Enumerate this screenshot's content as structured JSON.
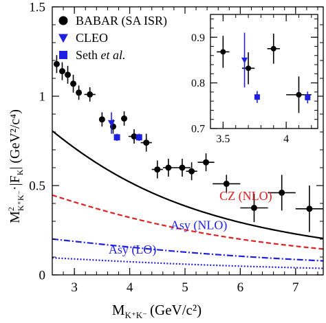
{
  "chart_data": [
    {
      "type": "scatter",
      "xlabel": "M",
      "xlabel_sub": "K⁺K⁻",
      "xlabel_unit": "(GeV/c²)",
      "ylabel": "M²K⁺K⁻·|FK| (GeV²/c⁴)",
      "ylabel_parts": {
        "m": "M",
        "sup": "2",
        "sub": "K⁺K⁻",
        "mid": "·|F",
        "sub2": "K",
        "tail": "| (GeV²/c⁴)"
      },
      "xlim": [
        2.6,
        7.5
      ],
      "ylim": [
        0,
        1.5
      ],
      "xticks": [
        3,
        4,
        5,
        6,
        7
      ],
      "yticks": [
        0,
        0.5,
        1,
        1.5
      ],
      "ytick_labels": [
        "0",
        "0.5",
        "1",
        "1.5"
      ],
      "legend": {
        "placement": "top-left",
        "entries": [
          {
            "label": "BABAR (SA ISR)",
            "marker": "circle",
            "color": "#000000"
          },
          {
            "label": "CLEO",
            "marker": "triangle-down",
            "color": "#1f1fe0"
          },
          {
            "label_main": "Seth ",
            "label_italic": "et al.",
            "marker": "square",
            "color": "#1f1fe0"
          }
        ]
      },
      "series": [
        {
          "name": "BABAR (SA ISR)",
          "marker": "circle",
          "color": "#000000",
          "points": [
            {
              "x": 2.68,
              "y": 1.18,
              "xerr": 0.05,
              "yerr": 0.05
            },
            {
              "x": 2.78,
              "y": 1.14,
              "xerr": 0.05,
              "yerr": 0.05
            },
            {
              "x": 2.88,
              "y": 1.12,
              "xerr": 0.05,
              "yerr": 0.05
            },
            {
              "x": 2.98,
              "y": 1.07,
              "xerr": 0.05,
              "yerr": 0.05
            },
            {
              "x": 3.08,
              "y": 1.02,
              "xerr": 0.05,
              "yerr": 0.04
            },
            {
              "x": 3.28,
              "y": 1.01,
              "xerr": 0.1,
              "yerr": 0.04
            },
            {
              "x": 3.5,
              "y": 0.87,
              "xerr": 0.05,
              "yerr": 0.04
            },
            {
              "x": 3.7,
              "y": 0.83,
              "xerr": 0.05,
              "yerr": 0.04
            },
            {
              "x": 3.9,
              "y": 0.875,
              "xerr": 0.05,
              "yerr": 0.04
            },
            {
              "x": 4.08,
              "y": 0.775,
              "xerr": 0.1,
              "yerr": 0.04
            },
            {
              "x": 4.3,
              "y": 0.74,
              "xerr": 0.1,
              "yerr": 0.05
            },
            {
              "x": 4.5,
              "y": 0.59,
              "xerr": 0.1,
              "yerr": 0.05
            },
            {
              "x": 4.7,
              "y": 0.6,
              "xerr": 0.1,
              "yerr": 0.05
            },
            {
              "x": 4.95,
              "y": 0.6,
              "xerr": 0.15,
              "yerr": 0.05
            },
            {
              "x": 5.12,
              "y": 0.58,
              "xerr": 0.1,
              "yerr": 0.05
            },
            {
              "x": 5.38,
              "y": 0.63,
              "xerr": 0.15,
              "yerr": 0.05
            },
            {
              "x": 5.75,
              "y": 0.51,
              "xerr": 0.25,
              "yerr": 0.05
            },
            {
              "x": 6.25,
              "y": 0.375,
              "xerr": 0.25,
              "yerr": 0.08
            },
            {
              "x": 6.75,
              "y": 0.46,
              "xerr": 0.25,
              "yerr": 0.1
            },
            {
              "x": 7.25,
              "y": 0.37,
              "xerr": 0.25,
              "yerr": 0.13
            }
          ]
        },
        {
          "name": "CLEO",
          "marker": "triangle-down",
          "color": "#1f1fe0",
          "points": [
            {
              "x": 3.67,
              "y": 0.85,
              "xerr": 0,
              "yerr": 0.06
            }
          ]
        },
        {
          "name": "Seth et al.",
          "marker": "square",
          "color": "#1f1fe0",
          "points": [
            {
              "x": 3.77,
              "y": 0.77,
              "xerr": 0,
              "yerr": 0.02
            },
            {
              "x": 4.17,
              "y": 0.77,
              "xerr": 0,
              "yerr": 0.02
            }
          ]
        }
      ],
      "curves": [
        {
          "name": "fit",
          "style": "solid",
          "color": "#000000",
          "a": 0.965,
          "b": 0.3
        },
        {
          "name": "CZ (NLO)",
          "style": "dashed",
          "color": "#e02020",
          "a": 0.505,
          "b": 0.2,
          "label": "CZ (NLO)",
          "label_color": "#e02020",
          "label_at": [
            6.1,
            0.42
          ]
        },
        {
          "name": "Asy (NLO)",
          "style": "dashdot",
          "color": "#1f1fe0",
          "a": 0.22,
          "b": 0.145,
          "label": "Asy (NLO)",
          "label_color": "#1f1fe0",
          "label_at": [
            5.25,
            0.255
          ]
        },
        {
          "name": "Asy (LO)",
          "style": "dotted",
          "color": "#1f1fe0",
          "a": 0.105,
          "b": 0.15,
          "label": "Asy (LO)",
          "label_color": "#1f1fe0",
          "label_at": [
            4.05,
            0.12
          ]
        }
      ],
      "grid": false
    },
    {
      "type": "scatter",
      "role": "inset",
      "placement": "top-right",
      "xlim": [
        3.4,
        4.25
      ],
      "ylim": [
        0.7,
        0.95
      ],
      "xticks": [
        3.5,
        4
      ],
      "xtick_labels": [
        "3.5",
        "4"
      ],
      "yticks": [
        0.7,
        0.8,
        0.9
      ],
      "ytick_labels": [
        "0.7",
        "0.8",
        "0.9"
      ],
      "series": [
        {
          "name": "BABAR (SA ISR)",
          "marker": "circle",
          "color": "#000000",
          "points": [
            {
              "x": 3.5,
              "y": 0.868,
              "xerr": 0.05,
              "yerr": 0.035
            },
            {
              "x": 3.7,
              "y": 0.832,
              "xerr": 0.05,
              "yerr": 0.035
            },
            {
              "x": 3.9,
              "y": 0.875,
              "xerr": 0.05,
              "yerr": 0.033
            },
            {
              "x": 4.1,
              "y": 0.774,
              "xerr": 0.1,
              "yerr": 0.04
            }
          ]
        },
        {
          "name": "CLEO",
          "marker": "triangle-down",
          "color": "#1f1fe0",
          "points": [
            {
              "x": 3.67,
              "y": 0.85,
              "xerr": 0,
              "yerr": 0.06
            }
          ]
        },
        {
          "name": "Seth et al.",
          "marker": "square",
          "color": "#1f1fe0",
          "points": [
            {
              "x": 3.77,
              "y": 0.769,
              "xerr": 0,
              "yerr": 0.013
            },
            {
              "x": 4.17,
              "y": 0.768,
              "xerr": 0,
              "yerr": 0.013
            }
          ]
        }
      ],
      "curves": [
        {
          "name": "fit",
          "style": "solid",
          "color": "#000000",
          "a": 0.965,
          "b": 0.3
        }
      ],
      "grid": false
    }
  ]
}
